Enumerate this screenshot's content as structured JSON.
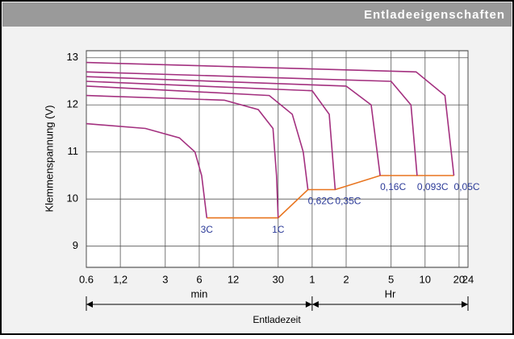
{
  "header": {
    "title": "Entladeeigenschaften"
  },
  "chart_data": {
    "type": "line",
    "ylabel": "Klemmenspannung (V)",
    "xlabel": "Entladezeit",
    "annotations": [
      "min",
      "Hr"
    ],
    "xscale": "log",
    "xlim": [
      0.6,
      1440
    ],
    "xticks": [
      0.6,
      {
        "value": 1.2,
        "label": "1,2"
      },
      3,
      6,
      12,
      30,
      {
        "value": 60,
        "label": "1"
      },
      {
        "value": 120,
        "label": "2"
      },
      {
        "value": 300,
        "label": "5"
      },
      {
        "value": 600,
        "label": "10"
      },
      {
        "value": 1200,
        "label": "20"
      },
      {
        "value": 1440,
        "label": "24"
      }
    ],
    "ylim": [
      8.55,
      13.15
    ],
    "yticks": [
      9,
      10,
      11,
      12,
      13
    ],
    "grid": true,
    "series": [
      {
        "name": "3C",
        "color": "#a3307f",
        "x": [
          0.6,
          2,
          4,
          5.5,
          6.3,
          7
        ],
        "values": [
          11.6,
          11.5,
          11.3,
          11.0,
          10.5,
          9.6
        ]
      },
      {
        "name": "1C",
        "color": "#a3307f",
        "x": [
          0.6,
          10,
          20,
          27,
          29,
          30
        ],
        "values": [
          12.2,
          12.1,
          11.9,
          11.5,
          10.5,
          9.6
        ]
      },
      {
        "name": "0,62C",
        "color": "#a3307f",
        "x": [
          0.6,
          25,
          40,
          50,
          55
        ],
        "values": [
          12.4,
          12.2,
          11.8,
          11.0,
          10.2
        ]
      },
      {
        "name": "0,35C",
        "color": "#a3307f",
        "x": [
          0.6,
          60,
          85,
          96
        ],
        "values": [
          12.5,
          12.3,
          11.8,
          10.2
        ]
      },
      {
        "name": "0,16C",
        "color": "#a3307f",
        "x": [
          0.6,
          120,
          200,
          240
        ],
        "values": [
          12.6,
          12.4,
          12.0,
          10.5
        ]
      },
      {
        "name": "0,093C",
        "color": "#a3307f",
        "x": [
          0.6,
          300,
          450,
          510
        ],
        "values": [
          12.7,
          12.5,
          12.0,
          10.5
        ]
      },
      {
        "name": "0,05C",
        "color": "#a3307f",
        "x": [
          0.6,
          500,
          900,
          1080
        ],
        "values": [
          12.9,
          12.7,
          12.2,
          10.5
        ]
      }
    ],
    "cutoff": {
      "color": "#e8741e",
      "x": [
        7,
        30,
        55,
        96,
        240,
        1080
      ],
      "values": [
        9.6,
        9.6,
        10.2,
        10.2,
        10.5,
        10.5
      ]
    }
  }
}
